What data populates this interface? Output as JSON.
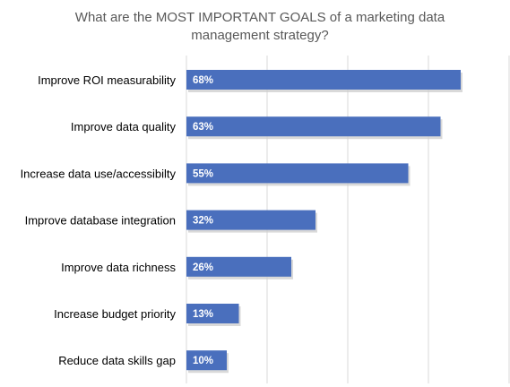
{
  "chart_data": {
    "type": "bar",
    "orientation": "horizontal",
    "title": "What are the MOST IMPORTANT GOALS of a marketing data management strategy?",
    "categories": [
      "Improve ROI measurability",
      "Improve data quality",
      "Increase data use/accessibilty",
      "Improve database integration",
      "Improve data richness",
      "Increase budget priority",
      "Reduce data skills gap"
    ],
    "values": [
      68,
      63,
      55,
      32,
      26,
      13,
      10
    ],
    "data_labels": [
      "68%",
      "63%",
      "55%",
      "32%",
      "26%",
      "13%",
      "10%"
    ],
    "xlim": [
      0,
      80
    ],
    "grid": true,
    "legend": "none",
    "colors": {
      "bar": "#4a6fbd",
      "bar_shadow": "#c9c9c9",
      "grid": "#d9d9d9",
      "label": "#000000",
      "data_label": "#ffffff",
      "title": "#595959"
    }
  }
}
